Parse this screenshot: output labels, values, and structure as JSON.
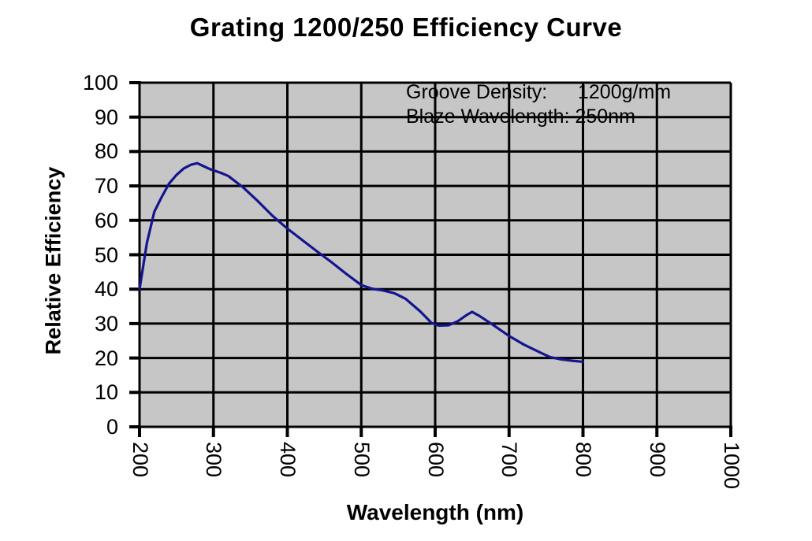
{
  "chart_data": {
    "type": "line",
    "title": "Grating 1200/250 Efficiency Curve",
    "xlabel": "Wavelength (nm)",
    "ylabel": "Relative Efficiency",
    "xlim": [
      200,
      1000
    ],
    "ylim": [
      0,
      100
    ],
    "x_ticks": [
      200,
      300,
      400,
      500,
      600,
      700,
      800,
      900,
      1000
    ],
    "y_ticks": [
      0,
      10,
      20,
      30,
      40,
      50,
      60,
      70,
      80,
      90,
      100
    ],
    "grid": true,
    "legend": "none",
    "plot_background": "#c6c6c6",
    "gridline_color": "#000000",
    "line_color": "#15158f",
    "annotation": {
      "groove_label": "Groove Density:",
      "groove_value": "1200g/mm",
      "blaze_line": "Blaze Wavelength: 250nm"
    },
    "series": [
      {
        "name": "Relative Efficiency",
        "x": [
          200,
          210,
          220,
          230,
          240,
          250,
          260,
          270,
          278,
          286,
          295,
          310,
          320,
          340,
          360,
          380,
          400,
          420,
          440,
          460,
          480,
          500,
          515,
          530,
          545,
          560,
          580,
          595,
          605,
          618,
          630,
          642,
          650,
          660,
          675,
          700,
          720,
          740,
          755,
          770,
          785,
          800
        ],
        "y": [
          40,
          53.5,
          62.5,
          66.8,
          70.7,
          73.2,
          75.1,
          76.2,
          76.6,
          75.8,
          74.9,
          73.8,
          72.9,
          69.6,
          65.6,
          61.3,
          57.6,
          54.3,
          51,
          47.8,
          44.4,
          41.2,
          40.1,
          39.6,
          38.8,
          37.2,
          33.5,
          30.2,
          29.4,
          29.5,
          30.6,
          32.4,
          33.4,
          32.2,
          30.1,
          26.4,
          23.9,
          21.8,
          20.3,
          19.6,
          19.2,
          18.9
        ]
      }
    ]
  }
}
